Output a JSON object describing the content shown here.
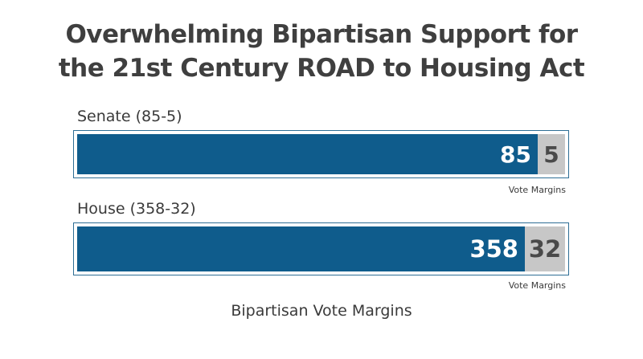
{
  "chart_data": {
    "type": "bar",
    "title_lines": [
      "Overwhelming Bipartisan Support for",
      "the 21st Century ROAD to Housing Act"
    ],
    "caption": "Bipartisan Vote Margins",
    "rows": [
      {
        "label": "Senate (85-5)",
        "yea": 85,
        "nay": 5,
        "yea_label": "85",
        "nay_label": "5",
        "note": "Vote Margins"
      },
      {
        "label": "House (358-32)",
        "yea": 358,
        "nay": 32,
        "yea_label": "358",
        "nay_label": "32",
        "note": "Vote Margins"
      }
    ],
    "colors": {
      "yea": "#0f5c8c",
      "nay": "#c7c7c7",
      "frame": "#2e6e95"
    }
  }
}
